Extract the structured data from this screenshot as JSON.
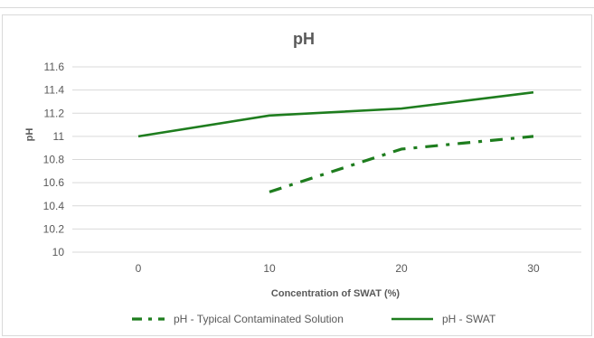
{
  "chart_data": {
    "type": "line",
    "title": "pH",
    "xlabel": "Concentration of SWAT (%)",
    "ylabel": "pH",
    "categories": [
      "0",
      "10",
      "20",
      "30"
    ],
    "ylim": [
      10,
      11.6
    ],
    "yticks": [
      "10",
      "10.2",
      "10.4",
      "10.6",
      "10.8",
      "11",
      "11.2",
      "11.4",
      "11.6"
    ],
    "grid": true,
    "legend_position": "bottom",
    "series": [
      {
        "name": "pH - Typical Contaminated Solution",
        "values": [
          null,
          10.52,
          10.89,
          11.0
        ],
        "color": "#1e7d1e",
        "style": "dash-dot"
      },
      {
        "name": "pH - SWAT",
        "values": [
          11.0,
          11.18,
          11.24,
          11.38
        ],
        "color": "#1e7d1e",
        "style": "solid"
      }
    ]
  }
}
